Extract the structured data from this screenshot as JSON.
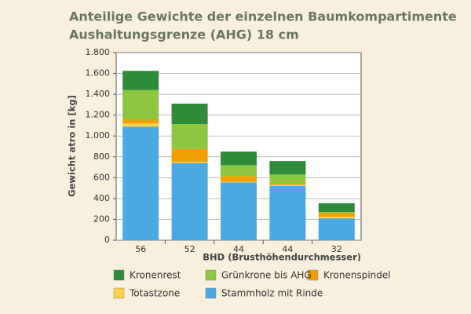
{
  "chart_data": {
    "type": "stacked_bar",
    "title": "Anteilige Gewichte der einzelnen Baumkompartimente",
    "subtitle": "Aushaltungsgrenze (AHG) 18 cm",
    "x_label": "BHD (Brusthöhendurchmesser)",
    "y_label": "Gewicht atro in [kg]",
    "categories": [
      "56",
      "52",
      "44",
      "44",
      "32"
    ],
    "series": [
      {
        "name": "Stammholz mit Rinde",
        "color": "#4aa9e0",
        "values": [
          1090,
          740,
          555,
          520,
          210
        ]
      },
      {
        "name": "Totastzone",
        "color": "#fcd04a",
        "values": [
          30,
          10,
          5,
          10,
          15
        ]
      },
      {
        "name": "Kronenspindel",
        "color": "#f0a000",
        "values": [
          40,
          125,
          55,
          20,
          35
        ]
      },
      {
        "name": "Grünkrone bis AHG",
        "color": "#8dc63f",
        "values": [
          280,
          240,
          105,
          80,
          10
        ]
      },
      {
        "name": "Kronenrest",
        "color": "#2e8b3a",
        "values": [
          185,
          195,
          130,
          130,
          85
        ]
      }
    ],
    "ylim": [
      0,
      1800
    ],
    "yticks": [
      0,
      200,
      400,
      600,
      800,
      {
        "value": 1000,
        "label": "1.000"
      },
      {
        "value": 1200,
        "label": "1.200"
      },
      {
        "value": 1400,
        "label": "1.400"
      },
      {
        "value": 1600,
        "label": "1.600"
      },
      {
        "value": 1800,
        "label": "1.800"
      }
    ],
    "grid": true
  }
}
